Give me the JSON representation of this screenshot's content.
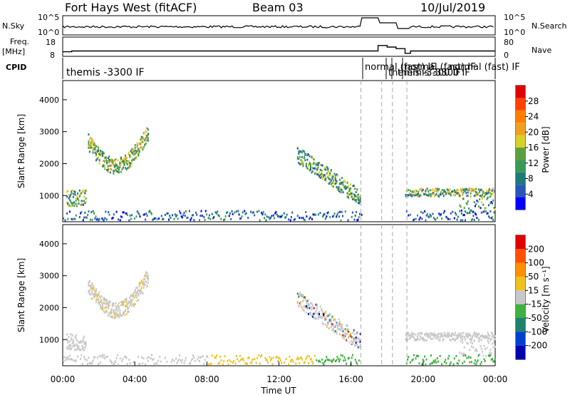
{
  "header": {
    "title": "Fort Hays West (fitACF)",
    "beam": "Beam 03",
    "date": "10/Jul/2019"
  },
  "left_labels": {
    "nsky": "N.Sky",
    "freq": "Freq.",
    "freq_unit": "[MHz]",
    "cpid": "CPID"
  },
  "right_labels": {
    "nsearch": "N.Search",
    "nave": "Nave"
  },
  "cpid_labels": [
    "themis -3300 IF",
    "normal (fast) IF",
    "normal (fast) IF",
    "themis -3300 IF",
    "themis -3300 IF",
    "normal (fast) IF"
  ],
  "chart_data": [
    {
      "type": "line",
      "title": "N.Sky / N.Search",
      "ylabel": "N.Sky",
      "y2label": "N.Search",
      "y_ticks": [
        "10^0",
        "10^5"
      ],
      "xlim": [
        0,
        24
      ]
    },
    {
      "type": "line",
      "title": "Freq. / Nave",
      "ylabel": "Freq. [MHz]",
      "y_ticks": [
        8,
        18
      ],
      "y2label": "Nave",
      "y2_ticks": [
        0,
        80
      ],
      "x": [
        0,
        0.5,
        16.5,
        17.5,
        18,
        18.5,
        19,
        19.3,
        24
      ],
      "freq": [
        10,
        10.5,
        10.5,
        14,
        13,
        12,
        9,
        10.5,
        10.5
      ],
      "xlim": [
        0,
        24
      ]
    },
    {
      "type": "heatmap",
      "title": "Power",
      "ylabel": "Slant Range [km]",
      "y_ticks": [
        1000,
        2000,
        3000,
        4000
      ],
      "ylim": [
        180,
        4600
      ],
      "xlim": [
        0,
        24
      ],
      "colorbar": {
        "label": "Power [dB]",
        "ticks": [
          4,
          8,
          12,
          16,
          20,
          24,
          28
        ],
        "colors": [
          "#0000ff",
          "#2a55b8",
          "#1e7a78",
          "#3a9a55",
          "#5aa040",
          "#d8d02a",
          "#f0a020",
          "#ff8000",
          "#ff4000",
          "#e00000"
        ]
      },
      "features": [
        {
          "name": "arc",
          "x_start": 1.4,
          "x_end": 4.7,
          "range_start": 2600,
          "range_min": 1700,
          "range_end": 2900
        },
        {
          "name": "decay",
          "x_start": 13.0,
          "x_end": 16.5,
          "range_start": 2550,
          "range_end": 1150
        },
        {
          "name": "band_1000",
          "x_start": 19.0,
          "x_end": 24.0,
          "range": 1100
        },
        {
          "name": "ground",
          "x_start": 0.0,
          "x_end": 24.0,
          "range": 350
        }
      ]
    },
    {
      "type": "heatmap",
      "title": "Velocity",
      "ylabel": "Slant Range [km]",
      "xlabel": "Time UT",
      "y_ticks": [
        1000,
        2000,
        3000,
        4000
      ],
      "x_ticks": [
        "00:00",
        "04:00",
        "08:00",
        "12:00",
        "16:00",
        "20:00",
        "00:00"
      ],
      "ylim": [
        180,
        4600
      ],
      "xlim": [
        0,
        24
      ],
      "colorbar": {
        "label": "Velocity [m s⁻¹]",
        "ticks": [
          200,
          100,
          50,
          15,
          -15,
          -50,
          -100,
          -200
        ],
        "colors": [
          "#0000b0",
          "#0040d0",
          "#208070",
          "#40b040",
          "#c8c8c8",
          "#f0c020",
          "#ff9000",
          "#ff5000",
          "#e00000"
        ]
      }
    }
  ]
}
